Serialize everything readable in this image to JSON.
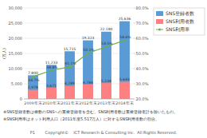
{
  "chart_data": {
    "type": "bar",
    "categories": [
      "2009年末",
      "2010年末",
      "2011年末",
      "2012年末",
      "2013年末",
      "2014年末"
    ],
    "series": [
      {
        "name": "SNS登録者数",
        "color": "#5B9BD5",
        "values": [
          7800,
          11233,
          15715,
          19323,
          22180,
          25636
        ],
        "value_labels": [
          "7,800",
          "11,233",
          "15,715",
          "19,323",
          "22,180",
          "25,636"
        ]
      },
      {
        "name": "SNS利用者数",
        "color": "#FF8080",
        "values": [
          2978,
          3671,
          4289,
          4784,
          5234,
          5643
        ],
        "value_labels": [
          "2,978",
          "3,671",
          "4,289",
          "4,784",
          "5,234",
          "5,643"
        ]
      },
      {
        "name": "SNS利用率",
        "type": "line",
        "axis": "y2",
        "color": "#70AD47",
        "marker": "circle",
        "values": [
          34.7,
          38.8,
          41.1,
          50.1,
          54.5,
          58.6
        ],
        "value_labels": [
          "34.7%",
          "38.8%",
          "41.1%",
          "50.1%",
          "54.5%",
          "58.6%"
        ]
      }
    ],
    "ylabel": "(万人)",
    "ylim": [
      0,
      30000
    ],
    "yticks": [
      0,
      {
        "value": 5000,
        "label": "5,000"
      },
      {
        "value": 10000,
        "label": "10,000"
      },
      {
        "value": 15000,
        "label": "15,000"
      },
      {
        "value": 20000,
        "label": "20,000"
      },
      {
        "value": 25000,
        "label": "25,000"
      },
      {
        "value": 30000,
        "label": "30,000"
      }
    ],
    "y2lim": [
      20,
      80
    ],
    "y2ticks": [
      {
        "value": 20,
        "label": "20.0%"
      },
      {
        "value": 30,
        "label": "30.0%"
      },
      {
        "value": 40,
        "label": "40.0%"
      },
      {
        "value": 50,
        "label": "50.0%"
      },
      {
        "value": 60,
        "label": "60.0%"
      },
      {
        "value": 70,
        "label": "70.0%"
      },
      {
        "value": 80,
        "label": "80.0%"
      }
    ],
    "grid": true,
    "data_labels": true,
    "legend": "right",
    "annotations": [
      "※SNS登録者数は複数のSNSへの重複登録者を含む。SNS利用者数は重複登録者計を除いたもの。",
      "※SNS利用率はネット利用人口（2011年度5,517万人）に対するSNS利用者数の割合。",
      "P1        Copyright©    ICT Research & Consulting Inc.  All Rights Reserved."
    ]
  }
}
